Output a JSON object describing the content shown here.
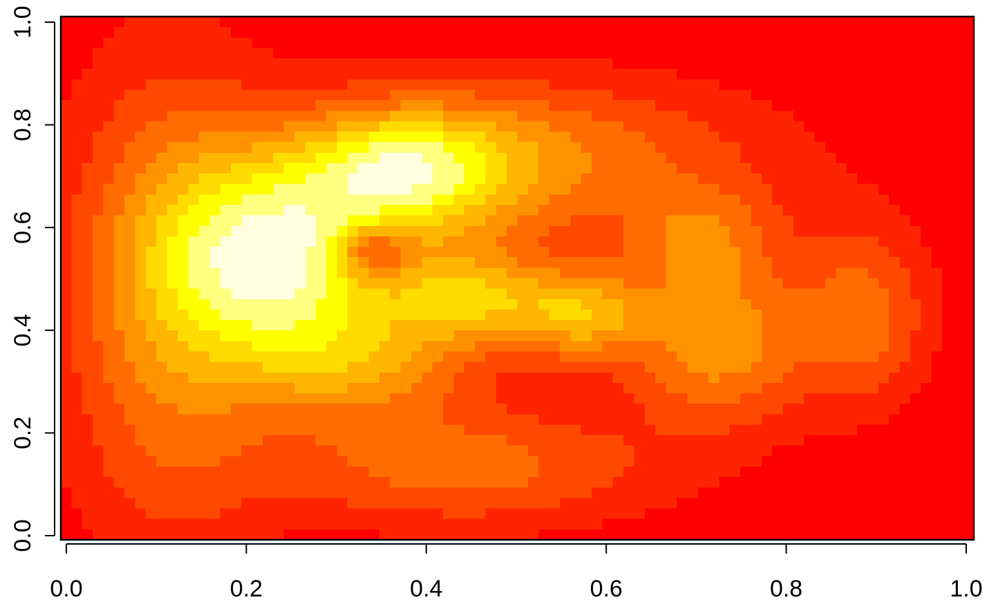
{
  "chart_data": {
    "type": "heatmap",
    "title": "",
    "xlabel": "",
    "ylabel": "",
    "xlim": [
      0.0,
      1.0
    ],
    "ylim": [
      0.0,
      1.0
    ],
    "grid": false,
    "legend": "none",
    "palette_name": "heat.colors",
    "palette": [
      "#FF0000",
      "#FF2400",
      "#FF4900",
      "#FF6D00",
      "#FF9200",
      "#FFB600",
      "#FFDB00",
      "#FFFF00",
      "#FFFF80",
      "#FFFFE0"
    ],
    "x_ticks": [
      {
        "value": 0.0,
        "label": "0.0"
      },
      {
        "value": 0.2,
        "label": "0.2"
      },
      {
        "value": 0.4,
        "label": "0.4"
      },
      {
        "value": 0.6,
        "label": "0.6"
      },
      {
        "value": 0.8,
        "label": "0.8"
      },
      {
        "value": 1.0,
        "label": "1.0"
      }
    ],
    "y_ticks": [
      {
        "value": 0.0,
        "label": "0.0"
      },
      {
        "value": 0.2,
        "label": "0.2"
      },
      {
        "value": 0.4,
        "label": "0.4"
      },
      {
        "value": 0.6,
        "label": "0.6"
      },
      {
        "value": 0.8,
        "label": "0.8"
      },
      {
        "value": 1.0,
        "label": "1.0"
      }
    ],
    "grid_size": [
      86,
      50
    ],
    "density_components": [
      {
        "cx": 0.24,
        "cy": 0.54,
        "sx": 0.085,
        "sy": 0.13,
        "w": 1.0
      },
      {
        "cx": 0.37,
        "cy": 0.71,
        "sx": 0.07,
        "sy": 0.07,
        "w": 0.55
      },
      {
        "cx": 0.33,
        "cy": 0.34,
        "sx": 0.09,
        "sy": 0.08,
        "w": 0.45
      },
      {
        "cx": 0.45,
        "cy": 0.46,
        "sx": 0.06,
        "sy": 0.06,
        "w": 0.55
      },
      {
        "cx": 0.57,
        "cy": 0.43,
        "sx": 0.05,
        "sy": 0.06,
        "w": 0.55
      },
      {
        "cx": 0.72,
        "cy": 0.38,
        "sx": 0.07,
        "sy": 0.11,
        "w": 0.5
      },
      {
        "cx": 0.7,
        "cy": 0.58,
        "sx": 0.06,
        "sy": 0.07,
        "w": 0.32
      },
      {
        "cx": 0.44,
        "cy": 0.14,
        "sx": 0.15,
        "sy": 0.08,
        "w": 0.35
      },
      {
        "cx": 0.12,
        "cy": 0.46,
        "sx": 0.08,
        "sy": 0.3,
        "w": 0.45
      },
      {
        "cx": 0.52,
        "cy": 0.74,
        "sx": 0.18,
        "sy": 0.1,
        "w": 0.35
      },
      {
        "cx": 0.88,
        "cy": 0.43,
        "sx": 0.05,
        "sy": 0.12,
        "w": 0.35
      },
      {
        "cx": 0.34,
        "cy": 0.55,
        "sx": 0.03,
        "sy": 0.035,
        "w": -0.45
      },
      {
        "cx": 0.42,
        "cy": 0.66,
        "sx": 0.1,
        "sy": 0.12,
        "w": 0.3
      }
    ]
  }
}
